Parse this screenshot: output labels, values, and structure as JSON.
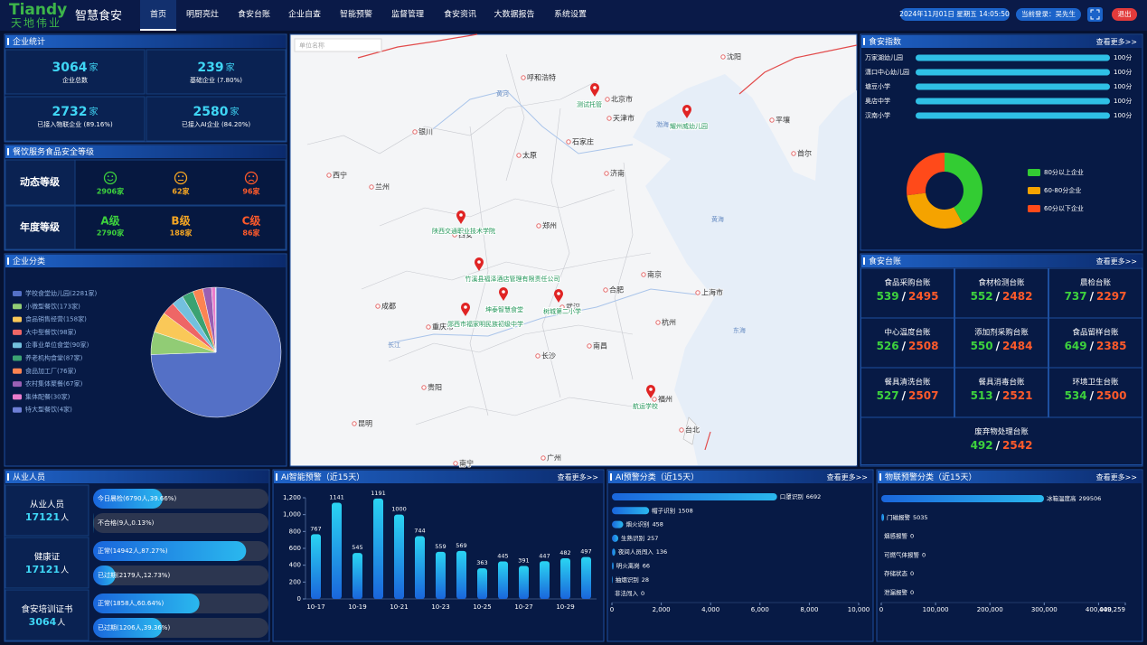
{
  "header": {
    "logo": "Tiandy",
    "logo_cn": "天地伟业",
    "app_name": "智慧食安",
    "nav": [
      "首页",
      "明厨亮灶",
      "食安台账",
      "企业自查",
      "智能预警",
      "监督管理",
      "食安资讯",
      "大数据报告",
      "系统设置"
    ],
    "datetime": "2024年11月01日 星期五 14:05:50",
    "user": "当前登录：吴先生",
    "logout": "退出"
  },
  "enterprise_stats": {
    "title": "企业统计",
    "items": [
      {
        "value": "3064",
        "unit": "家",
        "label": "企业总数"
      },
      {
        "value": "239",
        "unit": "家",
        "label": "基础企业 (7.80%)"
      },
      {
        "value": "2732",
        "unit": "家",
        "label": "已接入物联企业 (89.16%)"
      },
      {
        "value": "2580",
        "unit": "家",
        "label": "已接入AI企业 (84.20%)"
      }
    ]
  },
  "food_grade": {
    "title": "餐饮服务食品安全等级",
    "rows": [
      {
        "label": "动态等级",
        "items": [
          {
            "count": "2906家"
          },
          {
            "count": "62家"
          },
          {
            "count": "96家"
          }
        ]
      },
      {
        "label": "年度等级",
        "items": [
          {
            "grade": "A级",
            "count": "2790家"
          },
          {
            "grade": "B级",
            "count": "188家"
          },
          {
            "grade": "C级",
            "count": "86家"
          }
        ]
      }
    ]
  },
  "map": {
    "search_placeholder": "单位名称",
    "cities": [
      "沈阳",
      "呼和浩特",
      "北京市",
      "天津市",
      "银川",
      "石家庄",
      "太原",
      "济南",
      "西宁",
      "兰州",
      "郑州",
      "西安",
      "南京",
      "合肥",
      "上海市",
      "成都",
      "重庆市",
      "武汉",
      "杭州",
      "南昌",
      "长沙",
      "贵阳",
      "福州",
      "昆明",
      "台北",
      "南宁",
      "广州",
      "平壤",
      "首尔"
    ],
    "waters": [
      "黄河",
      "渤海",
      "黄海",
      "东海",
      "长江"
    ],
    "markers": [
      "测试托管",
      "耀州威幼儿园",
      "陕西交通职业技术学院",
      "竹溪县福泽酒店管理有限责任公司",
      "坤泰智慧食堂",
      "郧西市福家明民族初级中学",
      "树城第二小学",
      "航运学校"
    ]
  },
  "ledger": {
    "title": "食安台账",
    "more": "查看更多>>",
    "separator": "/",
    "items": [
      {
        "name": "食品采购台账",
        "done": "539",
        "total": "2495"
      },
      {
        "name": "食材检测台账",
        "done": "552",
        "total": "2482"
      },
      {
        "name": "晨检台账",
        "done": "737",
        "total": "2297"
      },
      {
        "name": "中心温度台账",
        "done": "526",
        "total": "2508"
      },
      {
        "name": "添加剂采购台账",
        "done": "550",
        "total": "2484"
      },
      {
        "name": "食品留样台账",
        "done": "649",
        "total": "2385"
      },
      {
        "name": "餐具清洗台账",
        "done": "527",
        "total": "2507"
      },
      {
        "name": "餐具消毒台账",
        "done": "513",
        "total": "2521"
      },
      {
        "name": "环境卫生台账",
        "done": "534",
        "total": "2500"
      },
      {
        "name": "废弃物处理台账",
        "done": "492",
        "total": "2542"
      }
    ]
  },
  "staff": {
    "title": "从业人员",
    "groups": [
      {
        "name": "从业人员",
        "count": "17121",
        "unit": "人",
        "bars": [
          {
            "label": "今日晨检(6790人,39.66%)",
            "value": 39.66
          },
          {
            "label": "不合格(9人,0.13%)",
            "value": 0.13
          }
        ]
      },
      {
        "name": "健康证",
        "count": "17121",
        "unit": "人",
        "bars": [
          {
            "label": "正常(14942人,87.27%)",
            "value": 87.27
          },
          {
            "label": "已过期(2179人,12.73%)",
            "value": 12.73
          }
        ]
      },
      {
        "name": "食安培训证书",
        "count": "3064",
        "unit": "人",
        "bars": [
          {
            "label": "正常(1858人,60.64%)",
            "value": 60.64
          },
          {
            "label": "已过期(1206人,39.36%)",
            "value": 39.36
          }
        ]
      }
    ]
  },
  "chart_data": [
    {
      "type": "pie",
      "title": "企业分类",
      "categories": [
        "学校食堂幼儿园(2281家)",
        "小微型餐饮(173家)",
        "食品销售经营(158家)",
        "大中型餐饮(98家)",
        "企事业单位食堂(90家)",
        "养老机构食堂(87家)",
        "食品加工厂(76家)",
        "农村集体聚餐(67家)",
        "集体配餐(30家)",
        "特大型餐饮(4家)"
      ],
      "values": [
        2281,
        173,
        158,
        98,
        90,
        87,
        76,
        67,
        30,
        4
      ],
      "colors": [
        "#5470c6",
        "#91cc75",
        "#fac858",
        "#ee6666",
        "#73c0de",
        "#3ba272",
        "#fc8452",
        "#9a60b4",
        "#ea7ccc",
        "#6e7fd6"
      ]
    },
    {
      "type": "hbar",
      "title": "食安指数",
      "more": "查看更多>>",
      "categories": [
        "万家湖幼儿园",
        "潇口中心幼儿园",
        "塘豆小学",
        "奥店中学",
        "汉南小学"
      ],
      "values": [
        100,
        100,
        100,
        100,
        100
      ],
      "value_labels": [
        "100分",
        "100分",
        "100分",
        "100分",
        "100分"
      ],
      "xlim": [
        0,
        100
      ],
      "color": "#2fc0e6"
    },
    {
      "type": "pie",
      "donut": true,
      "categories": [
        "80分以上企业",
        "60-80分企业",
        "60分以下企业"
      ],
      "values": [
        42,
        31,
        27
      ],
      "colors": [
        "#33cc33",
        "#f5a300",
        "#ff4a1a"
      ]
    },
    {
      "type": "bar",
      "title": "AI智能预警（近15天）",
      "more": "查看更多>>",
      "categories": [
        "10-17",
        null,
        "10-19",
        null,
        "10-21",
        null,
        "10-23",
        null,
        "10-25",
        null,
        "10-27",
        null,
        "10-29",
        null
      ],
      "values": [
        767,
        1141,
        545,
        1191,
        1000,
        744,
        559,
        569,
        363,
        445,
        391,
        447,
        482,
        497
      ],
      "ylim": [
        0,
        1200
      ],
      "yticks": [
        0,
        200,
        400,
        600,
        800,
        {
          "value": 1000,
          "label": "1,000"
        },
        {
          "value": 1200,
          "label": "1,200"
        }
      ],
      "color": "#2ad4f2"
    },
    {
      "type": "hbar",
      "title": "AI预警分类（近15天）",
      "more": "查看更多>>",
      "categories": [
        "口罩识别",
        "帽子识别",
        "烟火识别",
        "生熟识别",
        "夜间人员闯入",
        "明火离岗",
        "抽烟识别",
        "非法闯入"
      ],
      "values": [
        6692,
        1508,
        458,
        257,
        136,
        66,
        28,
        0
      ],
      "xlim": [
        0,
        10000
      ],
      "xticks": [
        0,
        {
          "value": 2000,
          "label": "2,000"
        },
        {
          "value": 4000,
          "label": "4,000"
        },
        {
          "value": 6000,
          "label": "6,000"
        },
        {
          "value": 8000,
          "label": "8,000"
        },
        {
          "value": 10000,
          "label": "10,000"
        }
      ],
      "color": "#2ab8ee"
    },
    {
      "type": "hbar",
      "title": "物联预警分类（近15天）",
      "more": "查看更多>>",
      "categories": [
        "冰箱温度高",
        "门磁报警",
        "烟感报警",
        "可燃气体报警",
        "存储状态",
        "泄漏报警"
      ],
      "values": [
        299506,
        5035,
        0,
        0,
        0,
        0
      ],
      "xlim": [
        0,
        449259
      ],
      "xticks": [
        0,
        {
          "value": 100000,
          "label": "100,000"
        },
        {
          "value": 200000,
          "label": "200,000"
        },
        {
          "value": 300000,
          "label": "300,000"
        },
        {
          "value": 400000,
          "label": "400,000"
        },
        {
          "value": 449259,
          "label": "449,259"
        }
      ],
      "color": "#2ab8ee"
    }
  ]
}
